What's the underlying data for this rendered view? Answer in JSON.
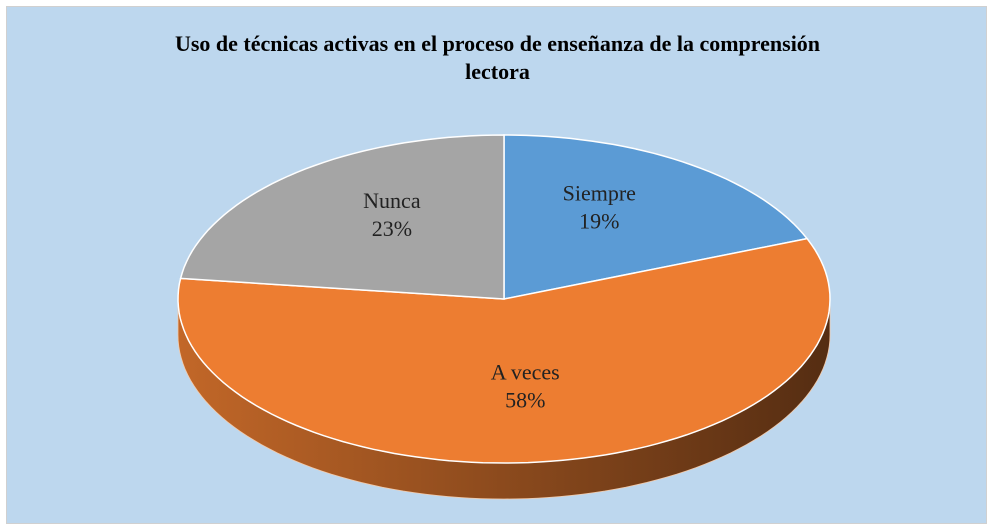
{
  "chart_data": {
    "type": "pie",
    "title": "Uso de técnicas activas en el proceso de enseñanza de la comprensión lectora",
    "categories": [
      "Siempre",
      "A veces",
      "Nunca"
    ],
    "values": [
      19,
      58,
      23
    ],
    "value_labels": [
      "19%",
      "58%",
      "23%"
    ],
    "colors": [
      "#5b9bd5",
      "#ed7d31",
      "#a5a5a5"
    ]
  }
}
